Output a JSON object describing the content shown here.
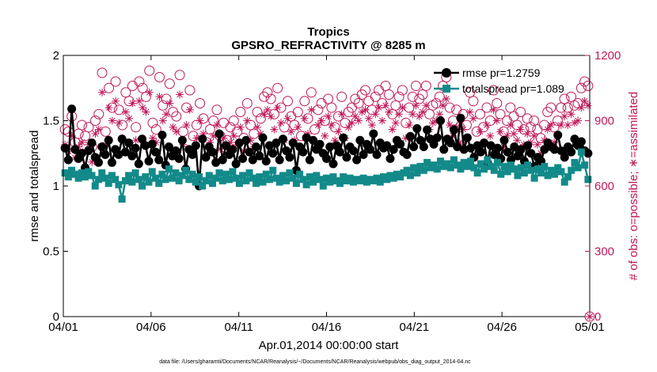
{
  "chart_data": {
    "type": "line",
    "title": "Tropics",
    "subtitle": "GPSRO_REFRACTIVITY @ 8285 m",
    "xlabel": "Apr.01,2014 00:00:00 start",
    "ylabel": "rmse and totalspread",
    "ylabel_right": "# of obs: o=possible; ∗=assimilated",
    "footnote": "data file: /Users/gharamti/Documents/NCAR/Reanalysis/~/Documents/NCAR/Reanalysis/webpub/obs_diag_output_2014-04.nc",
    "xlim": [
      0,
      30
    ],
    "ylim": [
      0,
      2
    ],
    "ylim_right": [
      0,
      1200
    ],
    "x_ticks": [
      0,
      5,
      10,
      15,
      20,
      25,
      30
    ],
    "x_tick_labels": [
      "04/01",
      "04/06",
      "04/11",
      "04/16",
      "04/21",
      "04/26",
      "05/01"
    ],
    "y_ticks": [
      0,
      0.5,
      1,
      1.5,
      2
    ],
    "y_tick_labels": [
      "0",
      "0.5",
      "1",
      "1.5",
      "2"
    ],
    "y_ticks_right": [
      0,
      300,
      600,
      900,
      1200
    ],
    "y_tick_labels_right": [
      "0",
      "300",
      "600",
      "900",
      "1200"
    ],
    "legend_position": "top-right",
    "series": [
      {
        "name": "rmse pr=1.2759",
        "color": "#000000",
        "marker": "circle-filled",
        "axis": "left",
        "values": [
          1.29,
          1.2,
          1.59,
          1.28,
          1.21,
          1.25,
          1.14,
          1.27,
          1.33,
          1.22,
          1.18,
          1.3,
          1.24,
          1.35,
          1.18,
          1.28,
          1.24,
          1.36,
          1.26,
          1.33,
          1.23,
          1.29,
          1.17,
          1.36,
          1.31,
          1.19,
          1.32,
          1.26,
          1.2,
          1.39,
          1.16,
          1.3,
          1.23,
          1.27,
          1.21,
          1.35,
          1.13,
          1.28,
          1.24,
          1.31,
          1.0,
          1.36,
          1.22,
          1.3,
          1.26,
          1.18,
          1.4,
          1.2,
          1.31,
          1.24,
          1.28,
          1.17,
          1.33,
          1.21,
          1.35,
          1.26,
          1.2,
          1.3,
          1.23,
          1.37,
          1.19,
          1.31,
          1.25,
          1.33,
          1.2,
          1.36,
          1.27,
          1.22,
          1.33,
          1.12,
          1.3,
          1.26,
          1.37,
          1.2,
          1.35,
          1.28,
          1.32,
          1.25,
          1.21,
          1.3,
          1.17,
          1.31,
          1.26,
          1.37,
          1.22,
          1.3,
          1.27,
          1.2,
          1.35,
          1.24,
          1.32,
          1.28,
          1.4,
          1.24,
          1.33,
          1.29,
          1.31,
          1.21,
          1.28,
          1.35,
          1.32,
          1.26,
          1.24,
          1.38,
          1.3,
          1.44,
          1.35,
          1.3,
          1.43,
          1.36,
          1.32,
          1.37,
          1.5,
          1.28,
          1.36,
          1.33,
          1.43,
          1.3,
          1.52,
          1.28,
          1.37,
          1.29,
          1.22,
          1.31,
          1.26,
          1.33,
          1.18,
          1.31,
          1.24,
          1.29,
          1.21,
          1.35,
          1.26,
          1.2,
          1.3,
          1.23,
          1.28,
          1.19,
          1.31,
          1.25,
          1.15,
          1.22,
          1.19,
          1.28,
          1.33,
          1.3,
          1.28,
          1.39,
          1.27,
          1.22,
          1.3,
          1.26,
          1.36,
          1.31,
          1.34,
          1.27,
          1.25
        ]
      },
      {
        "name": "totalspread pr=1.089",
        "color": "#138a8a",
        "marker": "square-filled",
        "axis": "left",
        "values": [
          1.1,
          1.07,
          1.12,
          1.09,
          1.06,
          1.1,
          1.07,
          1.11,
          1.08,
          1.0,
          1.05,
          1.1,
          1.06,
          1.02,
          1.08,
          1.05,
          1.01,
          0.9,
          1.04,
          1.08,
          1.03,
          1.1,
          1.05,
          1.0,
          1.07,
          1.03,
          1.11,
          1.06,
          1.02,
          1.09,
          1.05,
          1.13,
          1.06,
          1.1,
          1.04,
          1.08,
          1.12,
          1.05,
          1.09,
          1.03,
          1.07,
          1.0,
          1.04,
          1.08,
          1.02,
          1.06,
          1.1,
          1.04,
          1.09,
          1.05,
          1.11,
          1.06,
          1.02,
          1.08,
          1.04,
          1.1,
          1.06,
          1.02,
          1.07,
          1.03,
          1.09,
          1.05,
          1.12,
          1.06,
          1.03,
          1.08,
          1.04,
          1.1,
          1.06,
          1.02,
          1.09,
          1.05,
          1.01,
          1.07,
          1.03,
          1.08,
          1.05,
          1.0,
          1.06,
          1.03,
          1.07,
          1.04,
          1.02,
          1.07,
          1.04,
          1.06,
          1.03,
          1.05,
          1.04,
          1.06,
          1.03,
          1.05,
          1.04,
          1.06,
          1.03,
          1.07,
          1.05,
          1.08,
          1.06,
          1.09,
          1.07,
          1.1,
          1.12,
          1.08,
          1.14,
          1.1,
          1.15,
          1.12,
          1.18,
          1.14,
          1.16,
          1.13,
          1.19,
          1.15,
          1.17,
          1.14,
          1.2,
          1.16,
          1.13,
          1.18,
          1.15,
          1.19,
          1.14,
          1.1,
          1.17,
          1.13,
          1.2,
          1.15,
          1.12,
          1.18,
          1.09,
          1.15,
          1.11,
          1.16,
          1.13,
          1.08,
          1.14,
          1.1,
          1.16,
          1.12,
          1.06,
          1.13,
          1.1,
          1.15,
          1.08,
          1.12,
          1.09,
          1.14,
          1.11,
          1.03,
          1.07,
          1.12,
          1.18,
          1.14,
          1.26,
          1.16,
          1.05
        ]
      },
      {
        "name": "possible",
        "color": "#c0185a",
        "marker": "circle-open",
        "axis": "right",
        "values": [
          860,
          850,
          920,
          800,
          840,
          880,
          830,
          870,
          780,
          900,
          930,
          1120,
          850,
          1050,
          960,
          1080,
          950,
          880,
          1030,
          990,
          1060,
          870,
          1080,
          1050,
          1010,
          1130,
          890,
          860,
          1100,
          970,
          1000,
          1070,
          940,
          920,
          1110,
          850,
          960,
          1040,
          830,
          880,
          980,
          910,
          800,
          860,
          900,
          950,
          830,
          890,
          810,
          870,
          900,
          850,
          940,
          820,
          980,
          880,
          840,
          940,
          910,
          1010,
          1030,
          1000,
          930,
          1050,
          960,
          870,
          990,
          920,
          880,
          940,
          830,
          990,
          910,
          1030,
          860,
          950,
          980,
          900,
          1000,
          960,
          870,
          920,
          1010,
          890,
          940,
          960,
          1000,
          980,
          1020,
          1040,
          990,
          950,
          1010,
          1040,
          980,
          1060,
          1020,
          930,
          970,
          1010,
          1040,
          890,
          960,
          1010,
          1060,
          1000,
          1020,
          1060,
          930,
          970,
          980,
          1010,
          1060,
          1100,
          960,
          900,
          950,
          870,
          930,
          880,
          1030,
          990,
          850,
          930,
          870,
          960,
          900,
          1040,
          980,
          930,
          850,
          900,
          960,
          920,
          880,
          940,
          860,
          910,
          870,
          900,
          860,
          820,
          880,
          940,
          960,
          870,
          900,
          960,
          1000,
          960,
          1010,
          970,
          980,
          1050,
          1080,
          1060
        ]
      },
      {
        "name": "assimilated",
        "color": "#c0185a",
        "marker": "asterisk",
        "axis": "right",
        "values": [
          790,
          760,
          830,
          730,
          780,
          800,
          760,
          790,
          710,
          840,
          860,
          1030,
          790,
          960,
          900,
          990,
          890,
          820,
          940,
          910,
          980,
          810,
          990,
          960,
          940,
          1030,
          820,
          800,
          1010,
          900,
          930,
          980,
          870,
          850,
          1020,
          790,
          880,
          950,
          770,
          820,
          900,
          840,
          740,
          800,
          830,
          880,
          770,
          820,
          750,
          800,
          830,
          790,
          870,
          760,
          900,
          810,
          780,
          870,
          840,
          930,
          950,
          920,
          860,
          960,
          890,
          810,
          910,
          850,
          810,
          870,
          770,
          910,
          840,
          950,
          800,
          880,
          900,
          830,
          920,
          880,
          810,
          850,
          930,
          820,
          870,
          890,
          920,
          900,
          940,
          950,
          910,
          880,
          930,
          960,
          900,
          970,
          940,
          860,
          890,
          930,
          960,
          820,
          880,
          930,
          970,
          920,
          940,
          970,
          860,
          890,
          900,
          930,
          970,
          1000,
          880,
          830,
          870,
          800,
          860,
          810,
          940,
          910,
          780,
          850,
          800,
          880,
          830,
          950,
          900,
          850,
          780,
          830,
          880,
          840,
          810,
          860,
          790,
          840,
          800,
          830,
          790,
          750,
          810,
          860,
          880,
          800,
          830,
          880,
          920,
          880,
          930,
          890,
          900,
          960,
          990,
          970
        ]
      }
    ]
  }
}
